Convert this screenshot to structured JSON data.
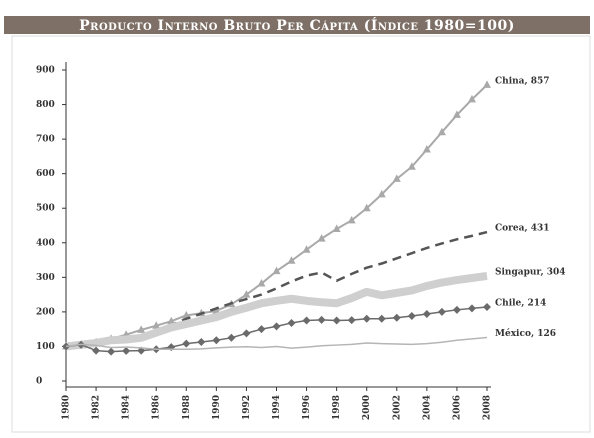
{
  "chart_data": {
    "type": "line",
    "title": "Producto Interno Bruto Per Cápita (Índice 1980=100)",
    "x": [
      1980,
      1981,
      1982,
      1983,
      1984,
      1985,
      1986,
      1987,
      1988,
      1989,
      1990,
      1991,
      1992,
      1993,
      1994,
      1995,
      1996,
      1997,
      1998,
      1999,
      2000,
      2001,
      2002,
      2003,
      2004,
      2005,
      2006,
      2007,
      2008
    ],
    "xlim": [
      1980,
      2008
    ],
    "xticks": [
      1980,
      1982,
      1984,
      1986,
      1988,
      1990,
      1992,
      1994,
      1996,
      1998,
      2000,
      2002,
      2004,
      2006,
      2008
    ],
    "ylim": [
      0,
      900
    ],
    "yticks": [
      0,
      100,
      200,
      300,
      400,
      500,
      600,
      700,
      800,
      900
    ],
    "series": [
      {
        "name": "China",
        "label": "China, 857",
        "color": "#a9a9a9",
        "width": 2,
        "marker": "triangle",
        "values": [
          100,
          104,
          112,
          122,
          134,
          148,
          160,
          173,
          190,
          196,
          203,
          222,
          250,
          282,
          318,
          348,
          380,
          412,
          440,
          465,
          500,
          540,
          585,
          620,
          670,
          720,
          770,
          815,
          857
        ]
      },
      {
        "name": "Corea",
        "label": "Corea, 431",
        "color": "#555555",
        "width": 2.5,
        "dash": true,
        "values": [
          100,
          97,
          103,
          112,
          122,
          130,
          145,
          162,
          180,
          195,
          210,
          225,
          237,
          250,
          268,
          288,
          305,
          314,
          290,
          310,
          328,
          340,
          355,
          370,
          385,
          398,
          410,
          420,
          431
        ]
      },
      {
        "name": "Singapur",
        "label": "Singapur, 304",
        "color": "#cfcfcf",
        "width": 8,
        "values": [
          100,
          105,
          110,
          118,
          120,
          125,
          140,
          155,
          165,
          175,
          185,
          200,
          212,
          225,
          232,
          238,
          232,
          228,
          225,
          240,
          258,
          248,
          255,
          262,
          275,
          285,
          292,
          298,
          304
        ]
      },
      {
        "name": "Chile",
        "label": "Chile, 214",
        "color": "#6a6a6a",
        "width": 1.5,
        "marker": "diamond",
        "values": [
          100,
          105,
          88,
          85,
          87,
          88,
          92,
          98,
          108,
          113,
          118,
          125,
          138,
          150,
          158,
          168,
          175,
          177,
          175,
          176,
          180,
          180,
          183,
          188,
          194,
          200,
          206,
          210,
          214
        ]
      },
      {
        "name": "México",
        "label": "México, 126",
        "color": "#b5b5b5",
        "width": 1.5,
        "values": [
          100,
          106,
          103,
          97,
          98,
          96,
          92,
          92,
          92,
          93,
          96,
          98,
          99,
          97,
          100,
          95,
          98,
          102,
          104,
          106,
          110,
          108,
          107,
          106,
          108,
          112,
          118,
          122,
          126
        ]
      }
    ]
  }
}
